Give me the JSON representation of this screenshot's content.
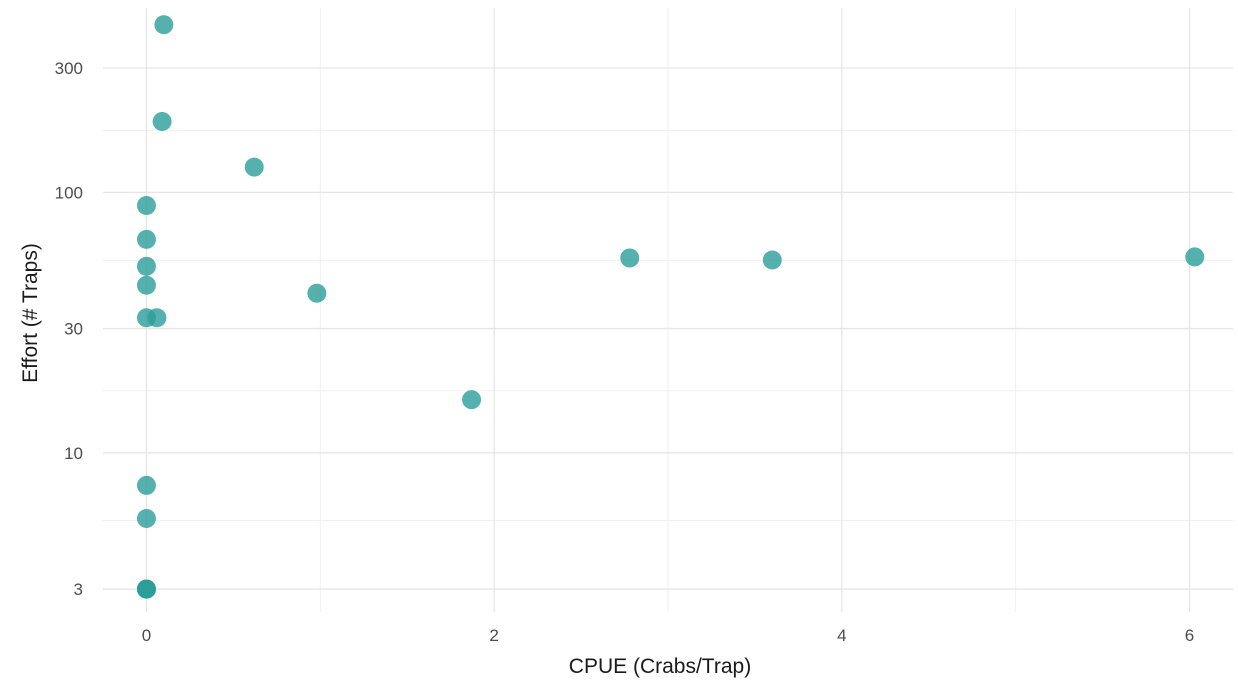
{
  "chart_data": {
    "type": "scatter",
    "title": "",
    "xlabel": "CPUE (Crabs/Trap)",
    "ylabel": "Effort (# Traps)",
    "xlim": [
      -0.25,
      6.25
    ],
    "ylim": [
      2.45,
      510
    ],
    "y_scale": "log10",
    "grid": true,
    "x_ticks": [
      0,
      2,
      4,
      6
    ],
    "x_tick_labels": [
      "0",
      "2",
      "4",
      "6"
    ],
    "x_minor_ticks": [
      1,
      3,
      5
    ],
    "y_ticks": [
      3,
      10,
      30,
      100,
      300
    ],
    "y_tick_labels": [
      "3",
      "10",
      "30",
      "100",
      "300"
    ],
    "y_minor_ticks": [
      5.5,
      17.3,
      54.8,
      173
    ],
    "point_color": "#2a9d99",
    "point_opacity": 0.8,
    "points": [
      {
        "x": 0.1,
        "y": 440
      },
      {
        "x": 0.09,
        "y": 187
      },
      {
        "x": 0.62,
        "y": 125
      },
      {
        "x": 0.0,
        "y": 89
      },
      {
        "x": 0.0,
        "y": 66
      },
      {
        "x": 0.0,
        "y": 52
      },
      {
        "x": 0.0,
        "y": 44
      },
      {
        "x": 0.0,
        "y": 33
      },
      {
        "x": 0.06,
        "y": 33
      },
      {
        "x": 0.98,
        "y": 41
      },
      {
        "x": 2.78,
        "y": 56
      },
      {
        "x": 3.6,
        "y": 55
      },
      {
        "x": 6.03,
        "y": 56.5
      },
      {
        "x": 1.87,
        "y": 16
      },
      {
        "x": 0.0,
        "y": 7.5
      },
      {
        "x": 0.0,
        "y": 5.6
      },
      {
        "x": 0.0,
        "y": 3
      },
      {
        "x": 0.0,
        "y": 3
      },
      {
        "x": 0.0,
        "y": 3
      }
    ]
  }
}
